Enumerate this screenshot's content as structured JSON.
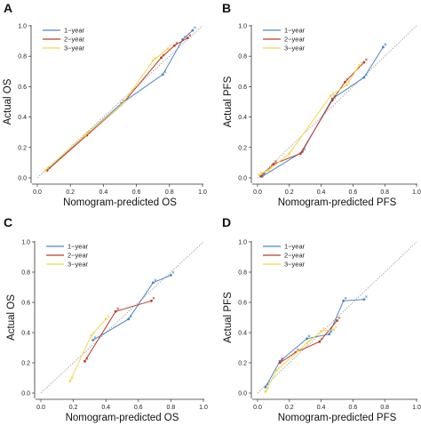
{
  "colors": {
    "1-year": "#4a86c8",
    "2-year": "#c0392b",
    "3-year": "#f2d84a",
    "diagonal": "#9a9a9a"
  },
  "chart_data": [
    {
      "panel": "A",
      "type": "line",
      "xlabel": "Nomogram-predicted OS",
      "ylabel": "Actual OS",
      "xlim": [
        0,
        1
      ],
      "ylim": [
        0,
        1
      ],
      "xticks": [
        "0.0",
        "0.2",
        "0.4",
        "0.6",
        "0.8",
        "1.0"
      ],
      "yticks": [
        "0.0",
        "0.2",
        "0.4",
        "0.6",
        "0.8",
        "1.0"
      ],
      "legend": [
        "1−year",
        "2−year",
        "3−year"
      ],
      "legend_position": "top-left",
      "reference_line": "diagonal",
      "series": [
        {
          "name": "1−year",
          "points": [
            [
              0.06,
              0.05
            ],
            [
              0.29,
              0.28
            ],
            [
              0.51,
              0.49
            ],
            [
              0.76,
              0.68
            ],
            [
              0.88,
              0.91
            ],
            [
              0.94,
              0.97
            ]
          ]
        },
        {
          "name": "2−year",
          "points": [
            [
              0.06,
              0.05
            ],
            [
              0.3,
              0.28
            ],
            [
              0.51,
              0.48
            ],
            [
              0.75,
              0.79
            ],
            [
              0.83,
              0.87
            ],
            [
              0.91,
              0.92
            ]
          ]
        },
        {
          "name": "3−year",
          "points": [
            [
              0.05,
              0.05
            ],
            [
              0.29,
              0.28
            ],
            [
              0.51,
              0.48
            ],
            [
              0.7,
              0.77
            ],
            [
              0.79,
              0.85
            ]
          ]
        }
      ]
    },
    {
      "panel": "B",
      "type": "line",
      "xlabel": "Nomogram-predicted PFS",
      "ylabel": "Actual PFS",
      "xlim": [
        0,
        1
      ],
      "ylim": [
        0,
        1
      ],
      "xticks": [
        "0.0",
        "0.2",
        "0.4",
        "0.6",
        "0.8",
        "1.0"
      ],
      "yticks": [
        "0.0",
        "0.2",
        "0.4",
        "0.6",
        "0.8",
        "1.0"
      ],
      "legend": [
        "1−year",
        "2−year",
        "3−year"
      ],
      "legend_position": "top-left",
      "reference_line": "diagonal",
      "series": [
        {
          "name": "1−year",
          "points": [
            [
              0.03,
              0.01
            ],
            [
              0.28,
              0.17
            ],
            [
              0.47,
              0.52
            ],
            [
              0.67,
              0.66
            ],
            [
              0.79,
              0.86
            ]
          ]
        },
        {
          "name": "2−year",
          "points": [
            [
              0.02,
              0.01
            ],
            [
              0.1,
              0.09
            ],
            [
              0.27,
              0.16
            ],
            [
              0.47,
              0.51
            ],
            [
              0.55,
              0.63
            ],
            [
              0.67,
              0.76
            ]
          ]
        },
        {
          "name": "3−year",
          "points": [
            [
              0.01,
              0.02
            ],
            [
              0.07,
              0.05
            ],
            [
              0.2,
              0.16
            ],
            [
              0.46,
              0.54
            ],
            [
              0.56,
              0.61
            ],
            [
              0.64,
              0.74
            ]
          ]
        }
      ]
    },
    {
      "panel": "C",
      "type": "line",
      "xlabel": "Nomogram-predicted OS",
      "ylabel": "Actual OS",
      "xlim": [
        0,
        1
      ],
      "ylim": [
        0,
        1
      ],
      "xticks": [
        "0.0",
        "0.2",
        "0.4",
        "0.6",
        "0.8",
        "1.0"
      ],
      "yticks": [
        "0.0",
        "0.2",
        "0.4",
        "0.6",
        "0.8",
        "1.0"
      ],
      "legend": [
        "1−year",
        "2−year",
        "3−year"
      ],
      "legend_position": "top-left",
      "reference_line": "diagonal",
      "series": [
        {
          "name": "1−year",
          "points": [
            [
              0.32,
              0.35
            ],
            [
              0.54,
              0.49
            ],
            [
              0.69,
              0.73
            ],
            [
              0.8,
              0.78
            ]
          ]
        },
        {
          "name": "2−year",
          "points": [
            [
              0.27,
              0.21
            ],
            [
              0.46,
              0.54
            ],
            [
              0.68,
              0.61
            ]
          ]
        },
        {
          "name": "3−year",
          "points": [
            [
              0.18,
              0.08
            ],
            [
              0.31,
              0.38
            ],
            [
              0.4,
              0.49
            ]
          ]
        }
      ]
    },
    {
      "panel": "D",
      "type": "line",
      "xlabel": "Nomogram-predicted PFS",
      "ylabel": "Actual PFS",
      "xlim": [
        0,
        1
      ],
      "ylim": [
        0,
        1
      ],
      "xticks": [
        "0.0",
        "0.2",
        "0.4",
        "0.6",
        "0.8",
        "1.0"
      ],
      "yticks": [
        "0.0",
        "0.2",
        "0.4",
        "0.6",
        "0.8",
        "1.0"
      ],
      "legend": [
        "1−year",
        "2−year",
        "3−year"
      ],
      "legend_position": "top-left",
      "reference_line": "diagonal",
      "series": [
        {
          "name": "1−year",
          "points": [
            [
              0.05,
              0.04
            ],
            [
              0.14,
              0.21
            ],
            [
              0.31,
              0.36
            ],
            [
              0.45,
              0.39
            ],
            [
              0.54,
              0.61
            ],
            [
              0.67,
              0.62
            ]
          ]
        },
        {
          "name": "2−year",
          "points": [
            [
              0.14,
              0.2
            ],
            [
              0.24,
              0.27
            ],
            [
              0.39,
              0.34
            ],
            [
              0.5,
              0.48
            ]
          ]
        },
        {
          "name": "3−year",
          "points": [
            [
              0.05,
              0.01
            ],
            [
              0.12,
              0.15
            ],
            [
              0.31,
              0.33
            ],
            [
              0.4,
              0.41
            ],
            [
              0.48,
              0.42
            ]
          ]
        }
      ]
    }
  ]
}
